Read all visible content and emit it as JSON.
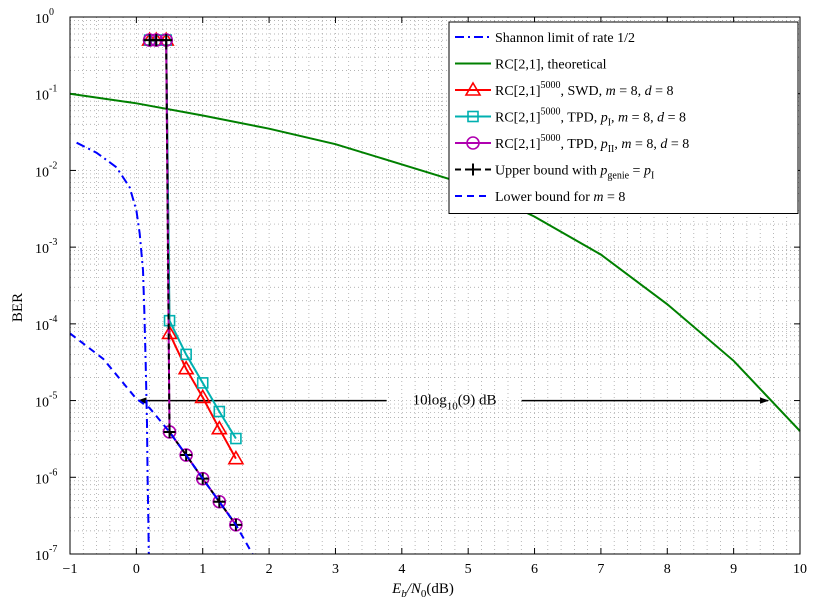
{
  "chart_data": {
    "type": "line",
    "xlabel": {
      "main": "E",
      "sub1": "b",
      "mid": "/N",
      "sub2": "0",
      "tail": "(dB)"
    },
    "ylabel": "BER",
    "xlim": [
      -1,
      10
    ],
    "ylim": [
      1e-07,
      1
    ],
    "yscale": "log",
    "grid": true,
    "legend_position": "top-right",
    "x_ticks": [
      "−1",
      "0",
      "1",
      "2",
      "3",
      "4",
      "5",
      "6",
      "7",
      "8",
      "9",
      "10"
    ],
    "y_ticks": [
      {
        "base": "10",
        "exp": "0"
      },
      {
        "base": "10",
        "exp": "-1"
      },
      {
        "base": "10",
        "exp": "-2"
      },
      {
        "base": "10",
        "exp": "-3"
      },
      {
        "base": "10",
        "exp": "-4"
      },
      {
        "base": "10",
        "exp": "-5"
      },
      {
        "base": "10",
        "exp": "-6"
      },
      {
        "base": "10",
        "exp": "-7"
      }
    ],
    "annotation": {
      "pre": "10log",
      "sub": "10",
      "post": "(9) dB",
      "x": 4.75,
      "y": 1e-05,
      "arrow_from": 0,
      "arrow_to": 9.55
    },
    "series": [
      {
        "key": "shannon",
        "color": "#0000ff",
        "dash": "9,4,2,4",
        "marker": "none",
        "x": [
          -0.9,
          -0.6,
          -0.3,
          -0.1,
          0.0,
          0.05,
          0.1,
          0.12,
          0.14,
          0.16,
          0.17,
          0.18,
          0.185,
          0.187
        ],
        "y": [
          0.023,
          0.017,
          0.011,
          0.006,
          0.003,
          0.0015,
          0.0005,
          0.00015,
          3e-05,
          5e-06,
          1e-06,
          3e-07,
          1.5e-07,
          1e-07
        ]
      },
      {
        "key": "theoretical",
        "color": "#008000",
        "dash": "",
        "marker": "none",
        "x": [
          -1,
          0,
          1,
          2,
          3,
          4,
          5,
          6,
          7,
          8,
          9,
          10
        ],
        "y": [
          0.1,
          0.075,
          0.052,
          0.035,
          0.022,
          0.012,
          0.0065,
          0.0025,
          0.0008,
          0.00018,
          3.3e-05,
          4e-06
        ]
      },
      {
        "key": "swd",
        "color": "#ff0000",
        "dash": "",
        "marker": "triangle",
        "x": [
          0.2,
          0.3,
          0.45,
          0.5,
          0.75,
          1.0,
          1.25,
          1.5
        ],
        "y": [
          0.5,
          0.5,
          0.5,
          7.5e-05,
          2.6e-05,
          1.1e-05,
          4.3e-06,
          1.75e-06
        ]
      },
      {
        "key": "tpd1",
        "color": "#00b0b0",
        "dash": "",
        "marker": "square",
        "x": [
          0.2,
          0.3,
          0.45,
          0.5,
          0.75,
          1.0,
          1.25,
          1.5
        ],
        "y": [
          0.5,
          0.5,
          0.5,
          0.00011,
          4e-05,
          1.7e-05,
          7.2e-06,
          3.2e-06
        ]
      },
      {
        "key": "tpd2",
        "color": "#b000b0",
        "dash": "",
        "marker": "circle",
        "x": [
          0.2,
          0.3,
          0.45,
          0.5,
          0.75,
          1.0,
          1.25,
          1.5
        ],
        "y": [
          0.5,
          0.5,
          0.5,
          3.9e-06,
          1.95e-06,
          9.6e-07,
          4.8e-07,
          2.4e-07
        ]
      },
      {
        "key": "upper",
        "color": "#000000",
        "dash": "6,4",
        "marker": "plus",
        "x": [
          0.2,
          0.3,
          0.45,
          0.5,
          0.75,
          1.0,
          1.25,
          1.5
        ],
        "y": [
          0.5,
          0.5,
          0.5,
          3.9e-06,
          1.95e-06,
          9.6e-07,
          4.8e-07,
          2.4e-07
        ]
      },
      {
        "key": "lower",
        "color": "#0000ff",
        "dash": "7,5",
        "marker": "none",
        "x": [
          -1,
          -0.5,
          0.0,
          0.2,
          0.5,
          0.75,
          1.0,
          1.25,
          1.5,
          1.75
        ],
        "y": [
          7.5e-05,
          3.5e-05,
          1.05e-05,
          8e-06,
          3.9e-06,
          1.95e-06,
          9.6e-07,
          4.8e-07,
          2.4e-07,
          1e-07
        ]
      }
    ],
    "legend": [
      {
        "key": "shannon",
        "parts": [
          {
            "t": "Shannon limit of rate 1/2"
          }
        ]
      },
      {
        "key": "theoretical",
        "parts": [
          {
            "t": "RC[2,1], theoretical"
          }
        ]
      },
      {
        "key": "swd",
        "parts": [
          {
            "t": "RC[2,1]"
          },
          {
            "t": "5000",
            "s": "sup"
          },
          {
            "t": ", SWD,  "
          },
          {
            "t": "m",
            "i": true
          },
          {
            "t": " = 8,  "
          },
          {
            "t": "d",
            "i": true
          },
          {
            "t": " = 8"
          }
        ]
      },
      {
        "key": "tpd1",
        "parts": [
          {
            "t": "RC[2,1]"
          },
          {
            "t": "5000",
            "s": "sup"
          },
          {
            "t": ", TPD,  "
          },
          {
            "t": "p",
            "i": true
          },
          {
            "t": "I",
            "s": "sub"
          },
          {
            "t": ",  "
          },
          {
            "t": "m",
            "i": true
          },
          {
            "t": " = 8,  "
          },
          {
            "t": "d",
            "i": true
          },
          {
            "t": " = 8"
          }
        ]
      },
      {
        "key": "tpd2",
        "parts": [
          {
            "t": "RC[2,1]"
          },
          {
            "t": "5000",
            "s": "sup"
          },
          {
            "t": ", TPD,  "
          },
          {
            "t": "p",
            "i": true
          },
          {
            "t": "II",
            "s": "sub"
          },
          {
            "t": ",  "
          },
          {
            "t": "m",
            "i": true
          },
          {
            "t": " = 8,  "
          },
          {
            "t": "d",
            "i": true
          },
          {
            "t": " = 8"
          }
        ]
      },
      {
        "key": "upper",
        "parts": [
          {
            "t": "Upper bound with  "
          },
          {
            "t": "p",
            "i": true
          },
          {
            "t": "genie",
            "s": "sub"
          },
          {
            "t": " = "
          },
          {
            "t": "p",
            "i": true
          },
          {
            "t": "I",
            "s": "sub"
          }
        ]
      },
      {
        "key": "lower",
        "parts": [
          {
            "t": "Lower bound for  "
          },
          {
            "t": "m",
            "i": true
          },
          {
            "t": " = 8"
          }
        ]
      }
    ]
  }
}
